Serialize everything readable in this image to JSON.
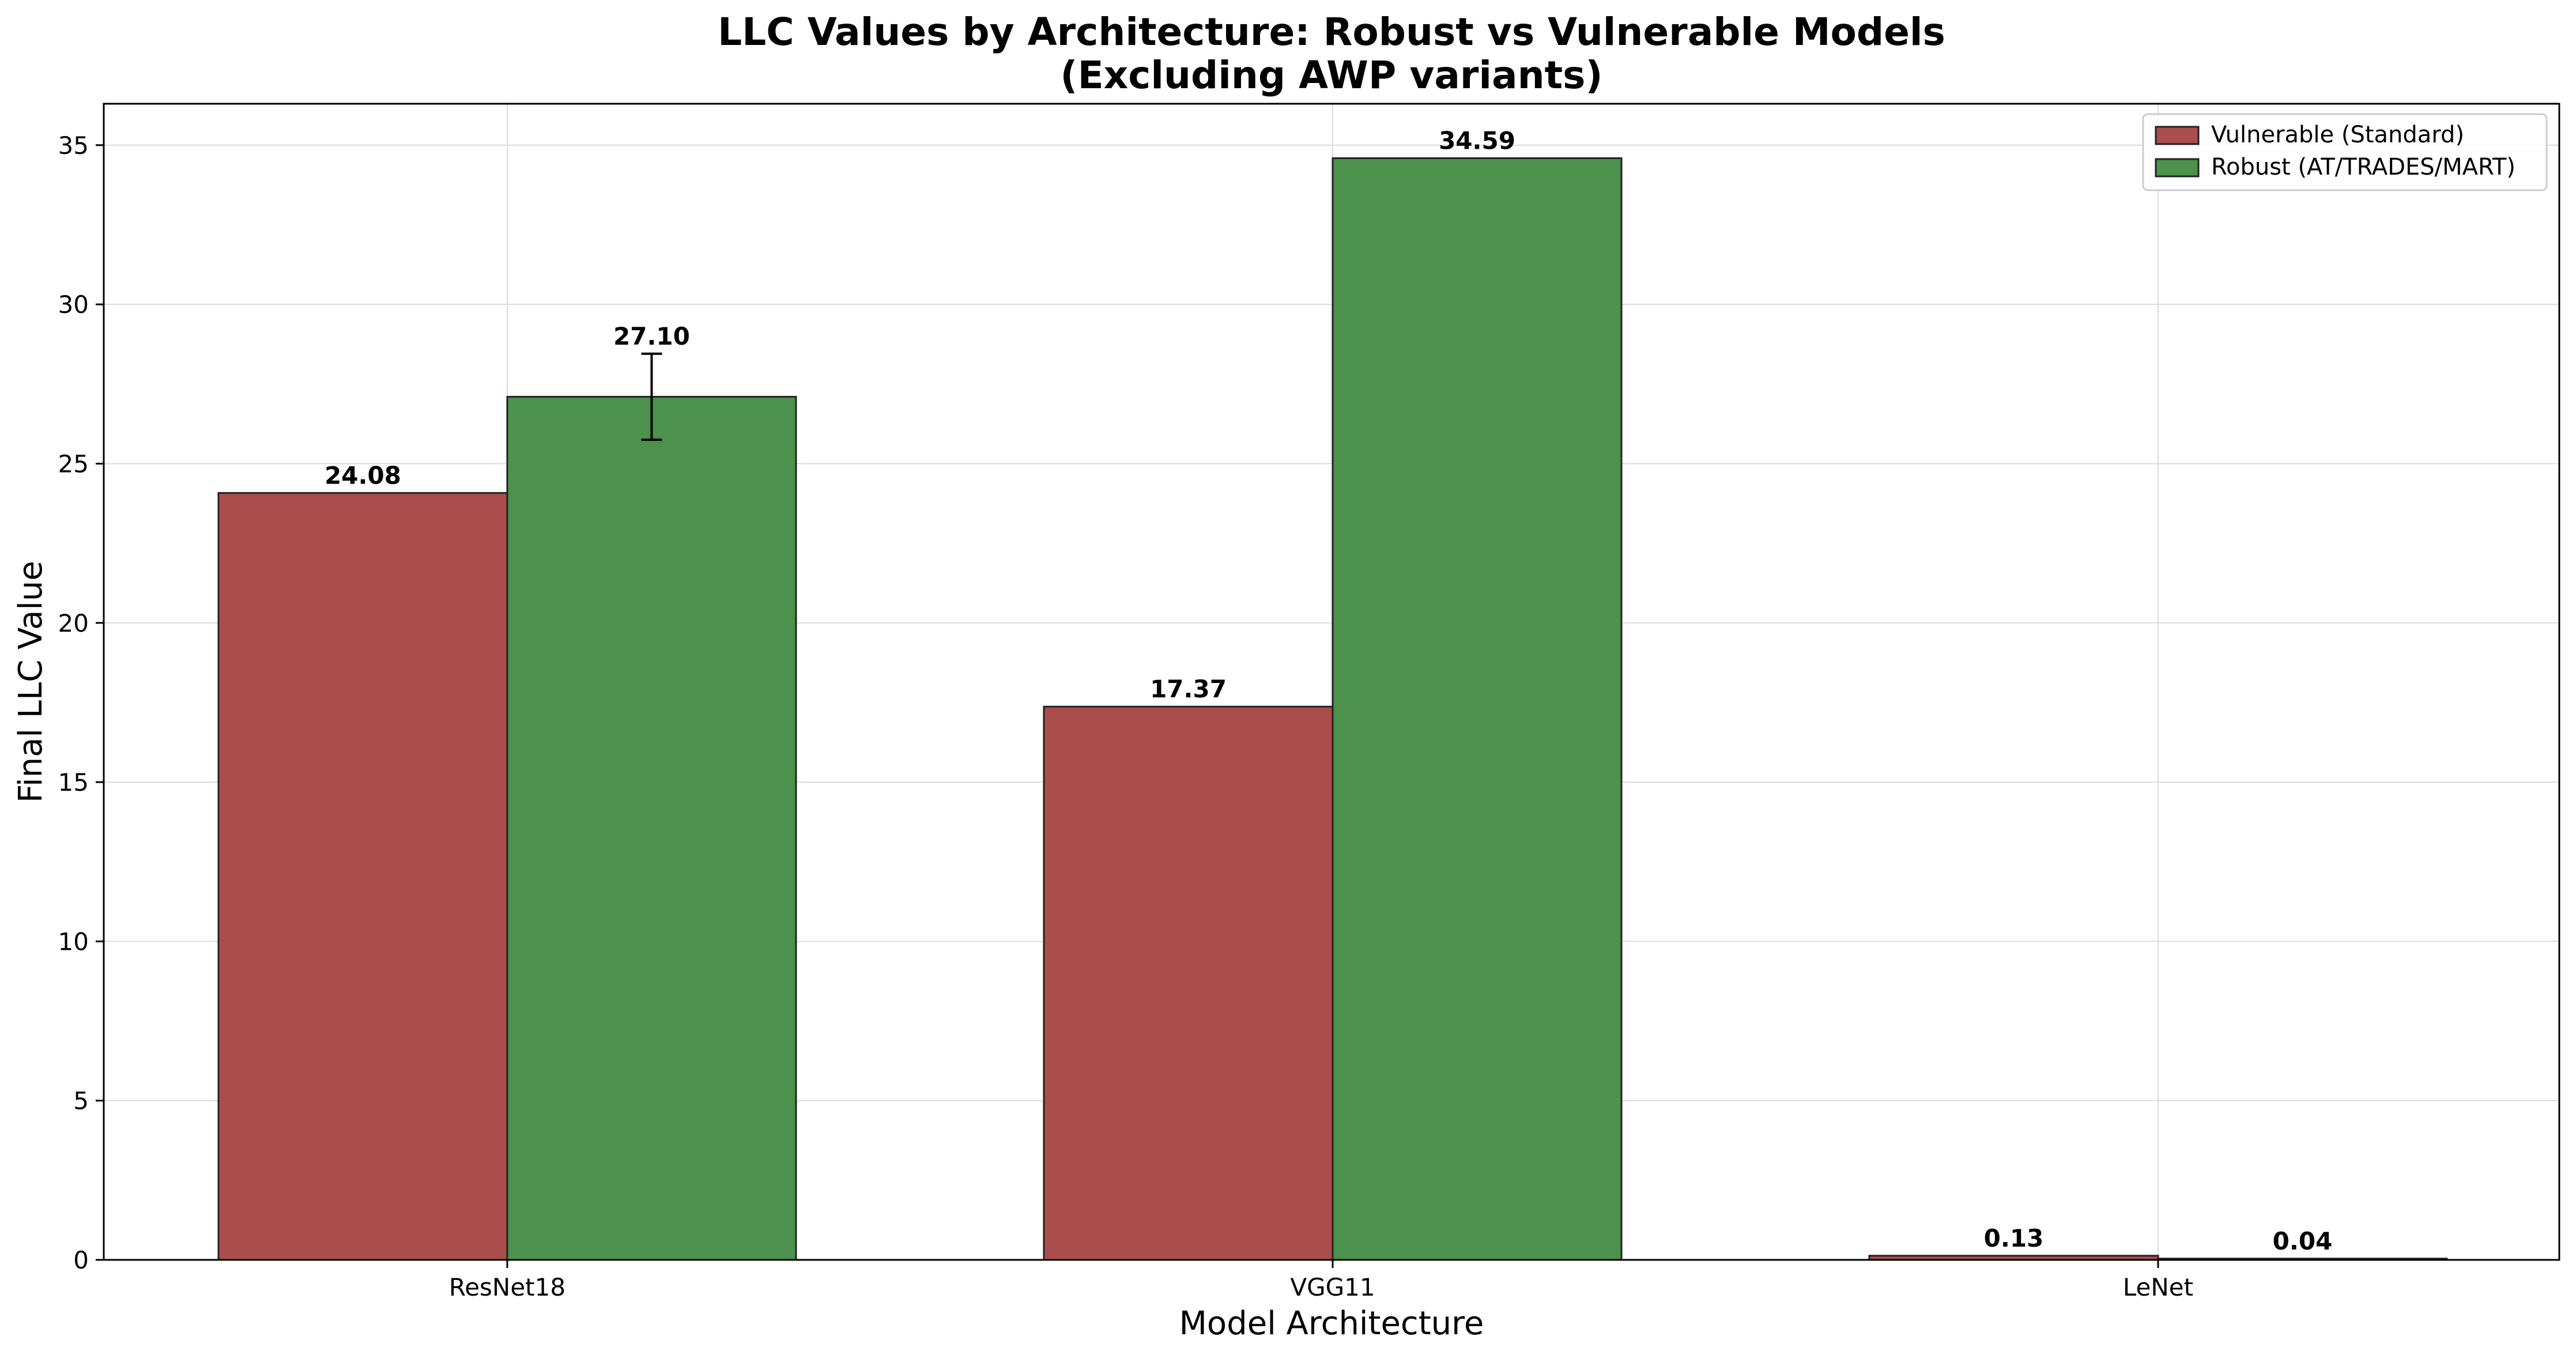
{
  "chart_data": {
    "type": "bar",
    "title": "LLC Values by Architecture: Robust vs Vulnerable Models",
    "subtitle": "(Excluding AWP variants)",
    "xlabel": "Model Architecture",
    "ylabel": "Final LLC Value",
    "categories": [
      "ResNet18",
      "VGG11",
      "LeNet"
    ],
    "ylim": [
      0,
      36.3
    ],
    "yticks": [
      0,
      5,
      10,
      15,
      20,
      25,
      30,
      35
    ],
    "grid": true,
    "legend_position": "top-right",
    "series": [
      {
        "name": "Vulnerable (Standard)",
        "color": "#ab4d4d",
        "values": [
          24.08,
          17.37,
          0.13
        ],
        "labels": [
          "24.08",
          "17.37",
          "0.13"
        ],
        "errors": [
          null,
          null,
          null
        ]
      },
      {
        "name": "Robust (AT/TRADES/MART)",
        "color": "#4c914c",
        "values": [
          27.1,
          34.59,
          0.04
        ],
        "labels": [
          "27.10",
          "34.59",
          "0.04"
        ],
        "errors": [
          1.35,
          null,
          null
        ]
      }
    ]
  }
}
